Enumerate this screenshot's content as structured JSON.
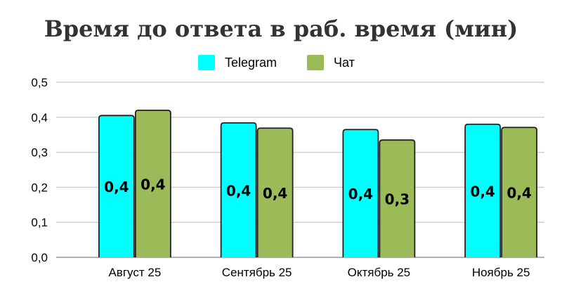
{
  "chart_data": {
    "type": "bar",
    "title": "Время до ответа в раб. время (мин)",
    "categories": [
      "Август 25",
      "Сентябрь 25",
      "Октябрь 25",
      "Ноябрь 25"
    ],
    "series": [
      {
        "name": "Telegram",
        "color": "#00FFFF",
        "values": [
          0.405,
          0.384,
          0.365,
          0.38
        ],
        "labels": [
          "0,4",
          "0,4",
          "0,4",
          "0,4"
        ]
      },
      {
        "name": "Чат",
        "color": "#9BBB59",
        "values": [
          0.42,
          0.369,
          0.335,
          0.371
        ],
        "labels": [
          "0,4",
          "0,4",
          "0,3",
          "0,4"
        ]
      }
    ],
    "ylim": [
      0,
      0.5
    ],
    "yticks": [
      "0,0",
      "0,1",
      "0,2",
      "0,3",
      "0,4",
      "0,5"
    ],
    "grid": true,
    "legend": "top"
  }
}
